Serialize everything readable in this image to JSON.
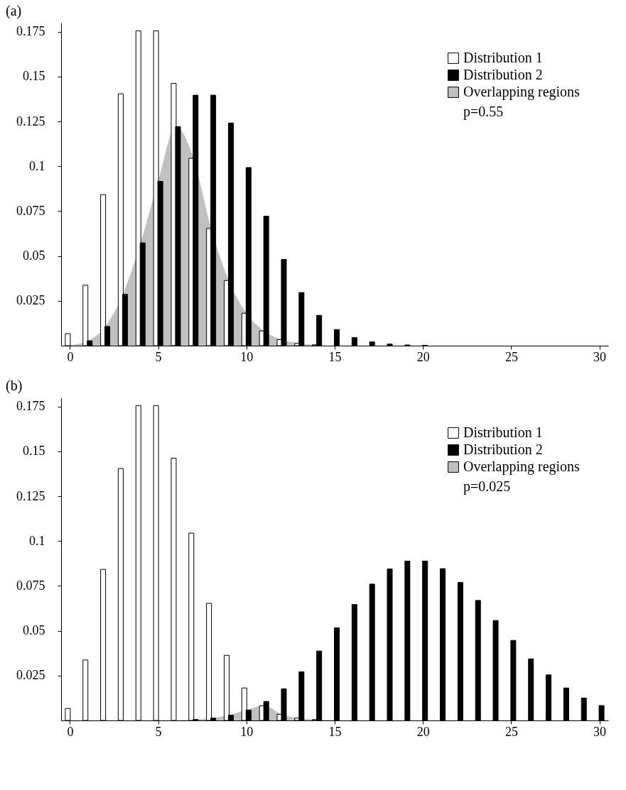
{
  "chart_data": [
    {
      "type": "bar",
      "title": "(a)",
      "xlim": [
        -0.5,
        30.5
      ],
      "xticks": [
        0,
        5,
        10,
        15,
        20,
        25,
        30
      ],
      "ylim": [
        0,
        0.18
      ],
      "yticks": [
        0.025,
        0.05,
        0.075,
        0.1,
        0.125,
        0.15,
        0.175
      ],
      "legend": "top right",
      "annotations": [
        "p=0.55"
      ],
      "grid": false,
      "series": [
        {
          "name": "Distribution 1",
          "color": "#ffffff",
          "x": [
            0,
            1,
            2,
            3,
            4,
            5,
            6,
            7,
            8,
            9,
            10,
            11,
            12,
            13,
            14
          ],
          "values": [
            0.0067,
            0.0337,
            0.0842,
            0.1404,
            0.1755,
            0.1755,
            0.1462,
            0.1044,
            0.0653,
            0.0363,
            0.0181,
            0.0082,
            0.0034,
            0.0013,
            0.0005
          ]
        },
        {
          "name": "Distribution 2",
          "color": "#000000",
          "x": [
            1,
            2,
            3,
            4,
            5,
            6,
            7,
            8,
            9,
            10,
            11,
            12,
            13,
            14,
            15,
            16,
            17,
            18,
            19,
            20
          ],
          "values": [
            0.0027,
            0.0107,
            0.0286,
            0.0573,
            0.0916,
            0.1221,
            0.1396,
            0.1396,
            0.1241,
            0.0993,
            0.0722,
            0.0481,
            0.0296,
            0.0169,
            0.009,
            0.0045,
            0.0021,
            0.0009,
            0.0004,
            0.0002
          ]
        },
        {
          "name": "Overlapping regions",
          "type": "area",
          "color": "#c0c0c0",
          "x": [
            0,
            1,
            2,
            3,
            4,
            5,
            6,
            7,
            8,
            9,
            10,
            11,
            12,
            13,
            14
          ],
          "values": [
            0.0003,
            0.0027,
            0.0107,
            0.0286,
            0.0573,
            0.0916,
            0.1221,
            0.1044,
            0.0653,
            0.0363,
            0.0181,
            0.0082,
            0.0034,
            0.0013,
            0.0005
          ]
        }
      ]
    },
    {
      "type": "bar",
      "title": "(b)",
      "xlim": [
        -0.5,
        30.5
      ],
      "xticks": [
        0,
        5,
        10,
        15,
        20,
        25,
        30
      ],
      "ylim": [
        0,
        0.18
      ],
      "yticks": [
        0.025,
        0.05,
        0.075,
        0.1,
        0.125,
        0.15,
        0.175
      ],
      "legend": "top right",
      "annotations": [
        "p=0.025"
      ],
      "grid": false,
      "series": [
        {
          "name": "Distribution 1",
          "color": "#ffffff",
          "x": [
            0,
            1,
            2,
            3,
            4,
            5,
            6,
            7,
            8,
            9,
            10,
            11,
            12,
            13,
            14
          ],
          "values": [
            0.0067,
            0.0337,
            0.0842,
            0.1404,
            0.1755,
            0.1755,
            0.1462,
            0.1044,
            0.0653,
            0.0363,
            0.0181,
            0.0082,
            0.0034,
            0.0013,
            0.0005
          ]
        },
        {
          "name": "Distribution 2",
          "color": "#000000",
          "x": [
            7,
            8,
            9,
            10,
            11,
            12,
            13,
            14,
            15,
            16,
            17,
            18,
            19,
            20,
            21,
            22,
            23,
            24,
            25,
            26,
            27,
            28,
            29,
            30
          ],
          "values": [
            0.0005,
            0.0013,
            0.0029,
            0.0058,
            0.0106,
            0.0176,
            0.0271,
            0.0387,
            0.0516,
            0.0646,
            0.076,
            0.0844,
            0.0888,
            0.0888,
            0.0846,
            0.0769,
            0.0669,
            0.0557,
            0.0446,
            0.0343,
            0.0254,
            0.0181,
            0.0125,
            0.0083
          ]
        },
        {
          "name": "Overlapping regions",
          "type": "area",
          "color": "#c0c0c0",
          "x": [
            6,
            7,
            8,
            9,
            10,
            11,
            12,
            13,
            14,
            15
          ],
          "values": [
            0.0001,
            0.0005,
            0.0013,
            0.0029,
            0.0058,
            0.0082,
            0.0034,
            0.0013,
            0.0005,
            0.0002
          ]
        }
      ]
    }
  ]
}
